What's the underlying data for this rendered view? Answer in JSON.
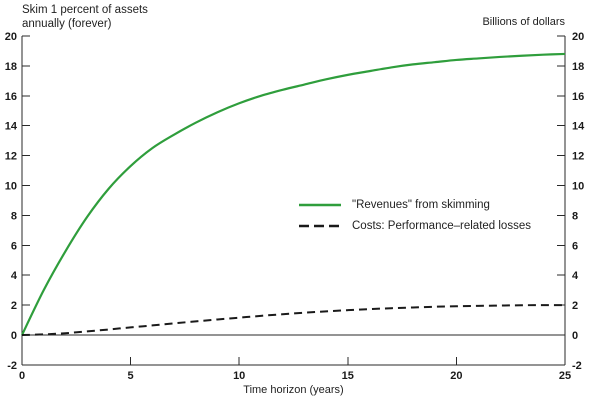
{
  "chart": {
    "title_line1": "Skim 1 percent of assets",
    "title_line2": "annually (forever)",
    "right_axis_title": "Billions of dollars",
    "x_axis_label": "Time horizon (years)"
  },
  "legend": {
    "items": [
      {
        "label": "\"Revenues\" from skimming",
        "style": "solid",
        "color": "#2f9e3c"
      },
      {
        "label": "Costs: Performance–related losses",
        "style": "dashed",
        "color": "#1a1a1a"
      }
    ]
  },
  "chart_data": {
    "type": "line",
    "title": "Skim 1 percent of assets annually (forever)",
    "xlabel": "Time horizon (years)",
    "ylabel_right": "Billions of dollars",
    "xlim": [
      0,
      25
    ],
    "ylim": [
      -2,
      20
    ],
    "x_ticks": [
      0,
      5,
      10,
      15,
      20,
      25
    ],
    "y_ticks": [
      20,
      18,
      16,
      14,
      12,
      10,
      8,
      6,
      4,
      2,
      0,
      -2
    ],
    "grid": false,
    "legend_position": "center-right",
    "zero_line": true,
    "axis_color": "#2a2a2a",
    "x": [
      0,
      1,
      2,
      3,
      4,
      5,
      6,
      7,
      8,
      9,
      10,
      11,
      12,
      13,
      14,
      15,
      16,
      17,
      18,
      19,
      20,
      21,
      22,
      23,
      24,
      25
    ],
    "series": [
      {
        "name": "\"Revenues\" from skimming",
        "color": "#2f9e3c",
        "line_style": "solid",
        "values": [
          0,
          3.0,
          5.6,
          7.9,
          9.8,
          11.3,
          12.5,
          13.4,
          14.2,
          14.9,
          15.5,
          16.0,
          16.4,
          16.75,
          17.1,
          17.4,
          17.65,
          17.9,
          18.1,
          18.25,
          18.4,
          18.5,
          18.6,
          18.68,
          18.75,
          18.8
        ]
      },
      {
        "name": "Costs: Performance–related losses",
        "color": "#1a1a1a",
        "line_style": "dashed",
        "values": [
          0,
          0.04,
          0.12,
          0.24,
          0.37,
          0.51,
          0.64,
          0.78,
          0.91,
          1.04,
          1.16,
          1.28,
          1.39,
          1.49,
          1.58,
          1.66,
          1.73,
          1.79,
          1.84,
          1.89,
          1.92,
          1.95,
          1.97,
          1.99,
          2.0,
          2.0
        ]
      }
    ]
  }
}
